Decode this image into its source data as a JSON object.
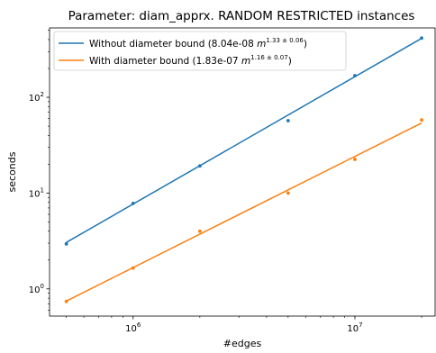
{
  "chart_data": {
    "type": "scatter",
    "title": "Parameter: diam_apprx. RANDOM RESTRICTED instances",
    "xlabel": "#edges",
    "ylabel": "seconds",
    "xscale": "log",
    "yscale": "log",
    "xlim": [
      420000,
      23000000
    ],
    "ylim": [
      0.52,
      530
    ],
    "x_ticks": [
      {
        "value": 1000000,
        "base": "10",
        "exp": "6"
      },
      {
        "value": 10000000,
        "base": "10",
        "exp": "7"
      }
    ],
    "y_ticks": [
      {
        "value": 1,
        "base": "10",
        "exp": "0"
      },
      {
        "value": 10,
        "base": "10",
        "exp": "1"
      },
      {
        "value": 100,
        "base": "10",
        "exp": "2"
      }
    ],
    "legend": "top-left",
    "grid": false,
    "series": [
      {
        "name_prefix": "Without diameter bound (8.04e-08 ",
        "name_var": "m",
        "name_exp": "1.33 ± 0.06",
        "name_suffix": ")",
        "color": "#1f77b4",
        "fit": {
          "coef": 8.04e-08,
          "exponent": 1.33
        },
        "points": [
          {
            "x": 500000,
            "y": 2.95
          },
          {
            "x": 1000000,
            "y": 7.8
          },
          {
            "x": 2000000,
            "y": 19.2
          },
          {
            "x": 5000000,
            "y": 57
          },
          {
            "x": 10000000,
            "y": 168
          },
          {
            "x": 20000000,
            "y": 415
          }
        ]
      },
      {
        "name_prefix": "With diameter bound (1.83e-07 ",
        "name_var": "m",
        "name_exp": "1.16 ± 0.07",
        "name_suffix": ")",
        "color": "#ff7f0e",
        "fit": {
          "coef": 1.83e-07,
          "exponent": 1.16
        },
        "points": [
          {
            "x": 500000,
            "y": 0.74
          },
          {
            "x": 1000000,
            "y": 1.65
          },
          {
            "x": 2000000,
            "y": 4.0
          },
          {
            "x": 5000000,
            "y": 10.0
          },
          {
            "x": 10000000,
            "y": 22.5
          },
          {
            "x": 20000000,
            "y": 58
          }
        ]
      }
    ]
  }
}
